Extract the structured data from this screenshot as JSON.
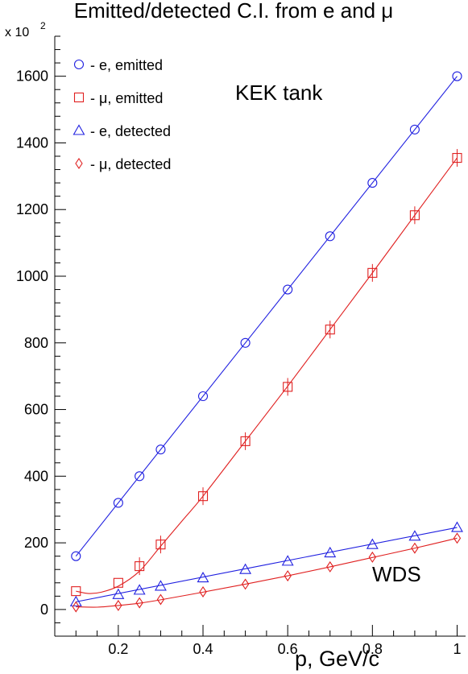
{
  "chart_data": {
    "type": "scatter",
    "title": "Emitted/detected C.I. from e and μ",
    "multiplier": "x 10",
    "multiplier_exp": "2",
    "xlabel": "p, GeV/c",
    "ylabel": "",
    "xlim": [
      0.05,
      1.02
    ],
    "ylim": [
      -80,
      1720
    ],
    "x_ticks": [
      0.2,
      0.4,
      0.6,
      0.8,
      1
    ],
    "x_tick_labels": [
      "0.2",
      "0.4",
      "0.6",
      "0.8",
      "1"
    ],
    "y_ticks": [
      0,
      200,
      400,
      600,
      800,
      1000,
      1200,
      1400,
      1600
    ],
    "y_tick_labels": [
      "0",
      "200",
      "400",
      "600",
      "800",
      "1000",
      "1200",
      "1400",
      "1600"
    ],
    "grid": false,
    "legend_position": "top-left",
    "annotations": [
      "KEK tank",
      "WDS"
    ],
    "colors": {
      "blue": "#2020e0",
      "red": "#e02020"
    },
    "series": [
      {
        "name": "- e, emitted",
        "marker": "circle",
        "color": "#2020e0",
        "x": [
          0.1,
          0.2,
          0.25,
          0.3,
          0.4,
          0.5,
          0.6,
          0.7,
          0.8,
          0.9,
          1.0
        ],
        "y": [
          160,
          320,
          400,
          480,
          640,
          800,
          960,
          1120,
          1280,
          1440,
          1600
        ],
        "fit": [
          [
            0.1,
            160
          ],
          [
            1.0,
            1600
          ]
        ]
      },
      {
        "name": "- μ, emitted",
        "marker": "square",
        "color": "#e02020",
        "x": [
          0.1,
          0.2,
          0.25,
          0.3,
          0.4,
          0.5,
          0.6,
          0.7,
          0.8,
          0.9,
          1.0
        ],
        "y": [
          55,
          80,
          130,
          195,
          340,
          505,
          668,
          840,
          1010,
          1183,
          1355
        ],
        "fit": [
          [
            0.1,
            55
          ],
          [
            0.13,
            48
          ],
          [
            0.16,
            52
          ],
          [
            0.2,
            70
          ],
          [
            0.25,
            115
          ],
          [
            0.3,
            190
          ],
          [
            0.35,
            265
          ],
          [
            0.4,
            340
          ],
          [
            0.5,
            505
          ],
          [
            0.6,
            670
          ],
          [
            0.7,
            840
          ],
          [
            0.8,
            1010
          ],
          [
            0.9,
            1183
          ],
          [
            1.0,
            1355
          ]
        ]
      },
      {
        "name": "- e, detected",
        "marker": "triangle",
        "color": "#2020e0",
        "x": [
          0.1,
          0.2,
          0.25,
          0.3,
          0.4,
          0.5,
          0.6,
          0.7,
          0.8,
          0.9,
          1.0
        ],
        "y": [
          23,
          45,
          58,
          70,
          95,
          120,
          145,
          170,
          195,
          220,
          246
        ],
        "fit": [
          [
            0.1,
            23
          ],
          [
            1.0,
            246
          ]
        ]
      },
      {
        "name": "- μ, detected",
        "marker": "diamond",
        "color": "#e02020",
        "x": [
          0.1,
          0.2,
          0.25,
          0.3,
          0.4,
          0.5,
          0.6,
          0.7,
          0.8,
          0.9,
          1.0
        ],
        "y": [
          8,
          12,
          20,
          30,
          53,
          76,
          101,
          128,
          157,
          184,
          214
        ],
        "fit": [
          [
            0.1,
            8
          ],
          [
            0.15,
            7
          ],
          [
            0.2,
            12
          ],
          [
            0.25,
            19
          ],
          [
            0.3,
            29
          ],
          [
            0.4,
            52
          ],
          [
            0.5,
            76
          ],
          [
            0.6,
            101
          ],
          [
            0.7,
            128
          ],
          [
            0.8,
            156
          ],
          [
            0.9,
            184
          ],
          [
            1.0,
            214
          ]
        ]
      }
    ]
  }
}
